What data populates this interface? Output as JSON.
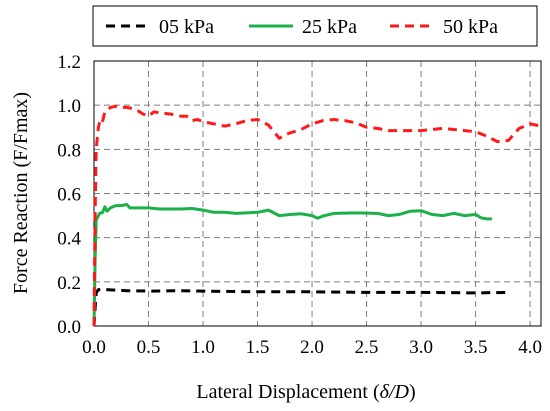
{
  "chart_data": {
    "type": "line",
    "title": "",
    "xlabel_text": "Lateral Displacement (",
    "xlabel_symbol": "δ/D",
    "xlabel_close": ")",
    "ylabel": "Force Reaction (F/Fmax)",
    "xlim": [
      0,
      4.1
    ],
    "ylim": [
      0,
      1.2
    ],
    "x_ticks": [
      "0.0",
      "0.5",
      "1.0",
      "1.5",
      "2.0",
      "2.5",
      "3.0",
      "3.5",
      "4.0"
    ],
    "y_ticks": [
      "0.0",
      "0.2",
      "0.4",
      "0.6",
      "0.8",
      "1.0",
      "1.2"
    ],
    "grid": "dashed",
    "legend_position": "top",
    "series": [
      {
        "name": "05 kPa",
        "color": "#000000",
        "style": "dashed",
        "points": [
          [
            0.0,
            0.0
          ],
          [
            0.01,
            0.08
          ],
          [
            0.02,
            0.15
          ],
          [
            0.04,
            0.165
          ],
          [
            0.1,
            0.165
          ],
          [
            0.3,
            0.16
          ],
          [
            0.5,
            0.158
          ],
          [
            0.8,
            0.16
          ],
          [
            1.0,
            0.158
          ],
          [
            1.5,
            0.155
          ],
          [
            2.0,
            0.155
          ],
          [
            2.5,
            0.152
          ],
          [
            3.0,
            0.152
          ],
          [
            3.5,
            0.15
          ],
          [
            3.8,
            0.152
          ]
        ]
      },
      {
        "name": "25 kPa",
        "color": "#1bb04a",
        "style": "solid",
        "points": [
          [
            0.0,
            0.0
          ],
          [
            0.01,
            0.3
          ],
          [
            0.02,
            0.48
          ],
          [
            0.05,
            0.51
          ],
          [
            0.08,
            0.515
          ],
          [
            0.1,
            0.54
          ],
          [
            0.12,
            0.52
          ],
          [
            0.15,
            0.535
          ],
          [
            0.2,
            0.545
          ],
          [
            0.25,
            0.545
          ],
          [
            0.3,
            0.55
          ],
          [
            0.33,
            0.535
          ],
          [
            0.4,
            0.535
          ],
          [
            0.5,
            0.535
          ],
          [
            0.6,
            0.53
          ],
          [
            0.7,
            0.53
          ],
          [
            0.8,
            0.53
          ],
          [
            0.9,
            0.532
          ],
          [
            1.0,
            0.525
          ],
          [
            1.1,
            0.515
          ],
          [
            1.2,
            0.515
          ],
          [
            1.3,
            0.51
          ],
          [
            1.4,
            0.512
          ],
          [
            1.5,
            0.515
          ],
          [
            1.6,
            0.525
          ],
          [
            1.7,
            0.5
          ],
          [
            1.8,
            0.505
          ],
          [
            1.9,
            0.508
          ],
          [
            2.0,
            0.5
          ],
          [
            2.05,
            0.488
          ],
          [
            2.1,
            0.498
          ],
          [
            2.2,
            0.51
          ],
          [
            2.4,
            0.512
          ],
          [
            2.6,
            0.51
          ],
          [
            2.7,
            0.5
          ],
          [
            2.8,
            0.505
          ],
          [
            2.9,
            0.52
          ],
          [
            3.0,
            0.522
          ],
          [
            3.1,
            0.505
          ],
          [
            3.2,
            0.5
          ],
          [
            3.3,
            0.51
          ],
          [
            3.4,
            0.5
          ],
          [
            3.5,
            0.505
          ],
          [
            3.55,
            0.49
          ],
          [
            3.6,
            0.485
          ],
          [
            3.65,
            0.485
          ]
        ]
      },
      {
        "name": "50 kPa",
        "color": "#ff1a1a",
        "style": "dashed",
        "points": [
          [
            0.0,
            0.0
          ],
          [
            0.01,
            0.5
          ],
          [
            0.02,
            0.8
          ],
          [
            0.04,
            0.9
          ],
          [
            0.06,
            0.94
          ],
          [
            0.08,
            0.93
          ],
          [
            0.1,
            0.97
          ],
          [
            0.15,
            0.99
          ],
          [
            0.2,
            0.995
          ],
          [
            0.25,
            0.99
          ],
          [
            0.3,
            0.99
          ],
          [
            0.35,
            0.985
          ],
          [
            0.4,
            0.975
          ],
          [
            0.45,
            0.96
          ],
          [
            0.5,
            0.95
          ],
          [
            0.55,
            0.97
          ],
          [
            0.6,
            0.965
          ],
          [
            0.7,
            0.96
          ],
          [
            0.8,
            0.95
          ],
          [
            0.85,
            0.95
          ],
          [
            0.9,
            0.93
          ],
          [
            0.95,
            0.935
          ],
          [
            1.0,
            0.925
          ],
          [
            1.1,
            0.915
          ],
          [
            1.2,
            0.905
          ],
          [
            1.3,
            0.915
          ],
          [
            1.4,
            0.93
          ],
          [
            1.5,
            0.935
          ],
          [
            1.6,
            0.91
          ],
          [
            1.7,
            0.85
          ],
          [
            1.75,
            0.865
          ],
          [
            1.8,
            0.875
          ],
          [
            1.9,
            0.89
          ],
          [
            2.0,
            0.915
          ],
          [
            2.1,
            0.93
          ],
          [
            2.2,
            0.935
          ],
          [
            2.3,
            0.93
          ],
          [
            2.4,
            0.92
          ],
          [
            2.5,
            0.9
          ],
          [
            2.6,
            0.895
          ],
          [
            2.7,
            0.885
          ],
          [
            2.8,
            0.885
          ],
          [
            2.9,
            0.885
          ],
          [
            3.0,
            0.885
          ],
          [
            3.1,
            0.89
          ],
          [
            3.2,
            0.895
          ],
          [
            3.3,
            0.89
          ],
          [
            3.4,
            0.885
          ],
          [
            3.5,
            0.88
          ],
          [
            3.6,
            0.86
          ],
          [
            3.7,
            0.835
          ],
          [
            3.8,
            0.84
          ],
          [
            3.9,
            0.895
          ],
          [
            4.0,
            0.915
          ],
          [
            4.1,
            0.905
          ]
        ]
      }
    ]
  }
}
